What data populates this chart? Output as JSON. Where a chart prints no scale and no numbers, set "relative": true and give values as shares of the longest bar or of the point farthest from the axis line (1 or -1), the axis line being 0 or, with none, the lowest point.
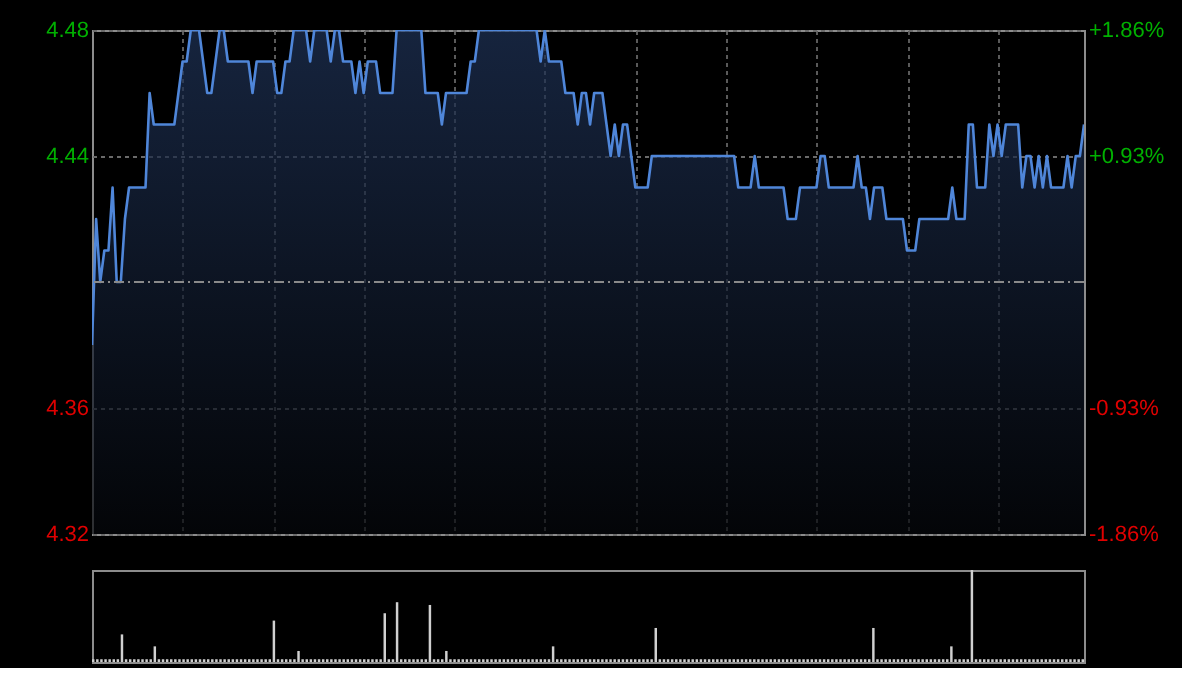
{
  "chart_data": [
    {
      "type": "area",
      "grid": true,
      "tick_labels": "y",
      "categories": [
        null,
        null,
        null,
        null,
        null,
        null,
        null,
        null,
        null,
        null,
        null,
        null,
        null,
        null,
        null,
        null,
        null,
        null,
        null,
        null,
        null,
        null,
        null,
        null,
        null,
        null,
        null,
        null,
        null,
        null,
        null,
        null,
        null,
        null,
        null,
        null,
        null,
        null,
        null,
        null,
        null,
        null,
        null,
        null,
        null,
        null,
        null,
        null,
        null,
        null,
        null,
        null,
        null,
        null,
        null,
        null,
        null,
        null,
        null,
        null,
        null,
        null,
        null,
        null,
        null,
        null,
        null,
        null,
        null,
        null,
        null,
        null,
        null,
        null,
        null,
        null,
        null,
        null,
        null,
        null,
        null,
        null,
        null,
        null,
        null,
        null,
        null,
        null,
        null,
        null,
        null,
        null,
        null,
        null,
        null,
        null,
        null,
        null,
        null,
        null,
        null,
        null,
        null,
        null,
        null,
        null,
        null,
        null,
        null,
        null,
        null,
        null,
        null,
        null,
        null,
        null,
        null,
        null,
        null,
        null,
        null,
        null,
        null,
        null,
        null,
        null,
        null,
        null,
        null,
        null,
        null,
        null,
        null,
        null,
        null,
        null,
        null,
        null,
        null,
        null,
        null,
        null,
        null,
        null,
        null,
        null,
        null,
        null,
        null,
        null,
        null,
        null,
        null,
        null,
        null,
        null,
        null,
        null,
        null,
        null,
        null,
        null,
        null,
        null,
        null,
        null,
        null,
        null,
        null,
        null,
        null,
        null,
        null,
        null,
        null,
        null,
        null,
        null,
        null,
        null,
        null,
        null,
        null,
        null,
        null,
        null,
        null,
        null,
        null,
        null,
        null,
        null,
        null,
        null,
        null,
        null,
        null,
        null,
        null,
        null,
        null,
        null,
        null,
        null,
        null,
        null,
        null,
        null,
        null,
        null,
        null,
        null,
        null,
        null,
        null,
        null,
        null,
        null,
        null,
        null,
        null,
        null,
        null,
        null,
        null,
        null,
        null,
        null,
        null,
        null,
        null,
        null,
        null,
        null,
        null,
        null,
        null,
        null,
        null,
        null,
        null,
        null
      ],
      "series": [
        {
          "color": "#4f86d9",
          "values": [
            4.38,
            4.42,
            4.4,
            4.41,
            4.41,
            4.43,
            4.4,
            4.4,
            4.42,
            4.43,
            4.43,
            4.43,
            4.43,
            4.43,
            4.46,
            4.45,
            4.45,
            4.45,
            4.45,
            4.45,
            4.45,
            4.46,
            4.47,
            4.47,
            4.48,
            4.48,
            4.48,
            4.47,
            4.46,
            4.46,
            4.47,
            4.48,
            4.48,
            4.47,
            4.47,
            4.47,
            4.47,
            4.47,
            4.47,
            4.46,
            4.47,
            4.47,
            4.47,
            4.47,
            4.47,
            4.46,
            4.46,
            4.47,
            4.47,
            4.48,
            4.48,
            4.48,
            4.48,
            4.47,
            4.48,
            4.48,
            4.48,
            4.48,
            4.47,
            4.48,
            4.48,
            4.47,
            4.47,
            4.47,
            4.46,
            4.47,
            4.46,
            4.47,
            4.47,
            4.47,
            4.46,
            4.46,
            4.46,
            4.46,
            4.48,
            4.48,
            4.48,
            4.48,
            4.48,
            4.48,
            4.48,
            4.46,
            4.46,
            4.46,
            4.46,
            4.45,
            4.46,
            4.46,
            4.46,
            4.46,
            4.46,
            4.46,
            4.47,
            4.47,
            4.48,
            4.48,
            4.48,
            4.48,
            4.48,
            4.48,
            4.48,
            4.48,
            4.48,
            4.48,
            4.48,
            4.48,
            4.48,
            4.48,
            4.48,
            4.47,
            4.48,
            4.47,
            4.47,
            4.47,
            4.47,
            4.46,
            4.46,
            4.46,
            4.45,
            4.46,
            4.46,
            4.45,
            4.46,
            4.46,
            4.46,
            4.45,
            4.44,
            4.45,
            4.44,
            4.45,
            4.45,
            4.44,
            4.43,
            4.43,
            4.43,
            4.43,
            4.44,
            4.44,
            4.44,
            4.44,
            4.44,
            4.44,
            4.44,
            4.44,
            4.44,
            4.44,
            4.44,
            4.44,
            4.44,
            4.44,
            4.44,
            4.44,
            4.44,
            4.44,
            4.44,
            4.44,
            4.44,
            4.43,
            4.43,
            4.43,
            4.43,
            4.44,
            4.43,
            4.43,
            4.43,
            4.43,
            4.43,
            4.43,
            4.43,
            4.42,
            4.42,
            4.42,
            4.43,
            4.43,
            4.43,
            4.43,
            4.43,
            4.44,
            4.44,
            4.43,
            4.43,
            4.43,
            4.43,
            4.43,
            4.43,
            4.43,
            4.44,
            4.43,
            4.43,
            4.42,
            4.43,
            4.43,
            4.43,
            4.42,
            4.42,
            4.42,
            4.42,
            4.42,
            4.41,
            4.41,
            4.41,
            4.42,
            4.42,
            4.42,
            4.42,
            4.42,
            4.42,
            4.42,
            4.42,
            4.43,
            4.42,
            4.42,
            4.42,
            4.45,
            4.45,
            4.43,
            4.43,
            4.43,
            4.45,
            4.44,
            4.45,
            4.44,
            4.45,
            4.45,
            4.45,
            4.45,
            4.43,
            4.44,
            4.44,
            4.43,
            4.44,
            4.43,
            4.44,
            4.43,
            4.43,
            4.43,
            4.43,
            4.44,
            4.43,
            4.44,
            4.44,
            4.45
          ]
        }
      ],
      "ylim": [
        4.32,
        4.48
      ],
      "yticks": [
        4.32,
        4.36,
        4.44,
        4.48
      ],
      "y2lim": [
        -1.86,
        1.86
      ],
      "y2ticks": [
        {
          "value": -1.86,
          "label": "-1.86%"
        },
        {
          "value": -0.93,
          "label": "-0.93%"
        },
        {
          "value": 0.93,
          "label": "+0.93%"
        },
        {
          "value": 1.86,
          "label": "+1.86%"
        }
      ],
      "ref_lines": [
        {
          "axis": "y",
          "value": 4.4,
          "line_style": "dashed",
          "color": "#8a8a8a"
        }
      ]
    },
    {
      "type": "bar",
      "relative": true,
      "tick_labels": false,
      "color": "#d0d0d0",
      "categories": [
        null,
        null,
        null,
        null,
        null,
        null,
        null,
        null,
        null,
        null,
        null,
        null,
        null,
        null,
        null,
        null,
        null,
        null,
        null,
        null,
        null,
        null,
        null,
        null,
        null,
        null,
        null,
        null,
        null,
        null,
        null,
        null,
        null,
        null,
        null,
        null,
        null,
        null,
        null,
        null,
        null,
        null,
        null,
        null,
        null,
        null,
        null,
        null,
        null,
        null,
        null,
        null,
        null,
        null,
        null,
        null,
        null,
        null,
        null,
        null,
        null,
        null,
        null,
        null,
        null,
        null,
        null,
        null,
        null,
        null,
        null,
        null,
        null,
        null,
        null,
        null,
        null,
        null,
        null,
        null,
        null,
        null,
        null,
        null,
        null,
        null,
        null,
        null,
        null,
        null,
        null,
        null,
        null,
        null,
        null,
        null,
        null,
        null,
        null,
        null,
        null,
        null,
        null,
        null,
        null,
        null,
        null,
        null,
        null,
        null,
        null,
        null,
        null,
        null,
        null,
        null,
        null,
        null,
        null,
        null,
        null,
        null,
        null,
        null,
        null,
        null,
        null,
        null,
        null,
        null,
        null,
        null,
        null,
        null,
        null,
        null,
        null,
        null,
        null,
        null,
        null,
        null,
        null,
        null,
        null,
        null,
        null,
        null,
        null,
        null,
        null,
        null,
        null,
        null,
        null,
        null,
        null,
        null,
        null,
        null,
        null,
        null,
        null,
        null,
        null,
        null,
        null,
        null,
        null,
        null,
        null,
        null,
        null,
        null,
        null,
        null,
        null,
        null,
        null,
        null,
        null,
        null,
        null,
        null,
        null,
        null,
        null,
        null,
        null,
        null,
        null,
        null,
        null,
        null,
        null,
        null,
        null,
        null,
        null,
        null,
        null,
        null,
        null,
        null,
        null,
        null,
        null,
        null,
        null,
        null,
        null,
        null,
        null,
        null,
        null,
        null,
        null,
        null,
        null,
        null,
        null,
        null,
        null,
        null,
        null,
        null,
        null,
        null,
        null,
        null,
        null,
        null,
        null,
        null,
        null,
        null,
        null,
        null,
        null,
        null,
        null,
        null
      ],
      "values": [
        0.03,
        0.03,
        0.03,
        0.03,
        0.03,
        0.03,
        0.03,
        0.3,
        0.03,
        0.03,
        0.03,
        0.03,
        0.03,
        0.03,
        0.03,
        0.17,
        0.03,
        0.03,
        0.03,
        0.03,
        0.03,
        0.03,
        0.03,
        0.03,
        0.03,
        0.03,
        0.03,
        0.03,
        0.03,
        0.03,
        0.03,
        0.03,
        0.03,
        0.03,
        0.03,
        0.03,
        0.03,
        0.03,
        0.03,
        0.03,
        0.03,
        0.03,
        0.03,
        0.03,
        0.45,
        0.03,
        0.03,
        0.03,
        0.03,
        0.03,
        0.12,
        0.03,
        0.03,
        0.03,
        0.03,
        0.03,
        0.03,
        0.03,
        0.03,
        0.03,
        0.03,
        0.03,
        0.03,
        0.03,
        0.03,
        0.03,
        0.03,
        0.03,
        0.03,
        0.03,
        0.03,
        0.53,
        0.03,
        0.03,
        0.65,
        0.03,
        0.03,
        0.03,
        0.03,
        0.03,
        0.03,
        0.03,
        0.62,
        0.03,
        0.03,
        0.03,
        0.12,
        0.03,
        0.03,
        0.03,
        0.03,
        0.03,
        0.03,
        0.03,
        0.03,
        0.03,
        0.03,
        0.03,
        0.03,
        0.03,
        0.03,
        0.03,
        0.03,
        0.03,
        0.03,
        0.03,
        0.03,
        0.03,
        0.03,
        0.03,
        0.03,
        0.03,
        0.17,
        0.03,
        0.03,
        0.03,
        0.03,
        0.03,
        0.03,
        0.03,
        0.03,
        0.03,
        0.03,
        0.03,
        0.03,
        0.03,
        0.03,
        0.03,
        0.03,
        0.03,
        0.03,
        0.03,
        0.03,
        0.03,
        0.03,
        0.03,
        0.03,
        0.37,
        0.03,
        0.03,
        0.03,
        0.03,
        0.03,
        0.03,
        0.03,
        0.03,
        0.03,
        0.03,
        0.03,
        0.03,
        0.03,
        0.03,
        0.03,
        0.03,
        0.03,
        0.03,
        0.03,
        0.03,
        0.03,
        0.03,
        0.03,
        0.03,
        0.03,
        0.03,
        0.03,
        0.03,
        0.03,
        0.03,
        0.03,
        0.03,
        0.03,
        0.03,
        0.03,
        0.03,
        0.03,
        0.03,
        0.03,
        0.03,
        0.03,
        0.03,
        0.03,
        0.03,
        0.03,
        0.03,
        0.03,
        0.03,
        0.03,
        0.03,
        0.03,
        0.03,
        0.37,
        0.03,
        0.03,
        0.03,
        0.03,
        0.03,
        0.03,
        0.03,
        0.03,
        0.03,
        0.03,
        0.03,
        0.03,
        0.03,
        0.03,
        0.03,
        0.03,
        0.03,
        0.03,
        0.17,
        0.03,
        0.03,
        0.03,
        0.03,
        1,
        0.03,
        0.03,
        0.03,
        0.03,
        0.03,
        0.03,
        0.03,
        0.03,
        0.03,
        0.03,
        0.03,
        0.03,
        0.03,
        0.03,
        0.03,
        0.03,
        0.03,
        0.03,
        0.03,
        0.03,
        0.03,
        0.03,
        0.03,
        0.03,
        0.03,
        0.03,
        0.03
      ]
    }
  ]
}
